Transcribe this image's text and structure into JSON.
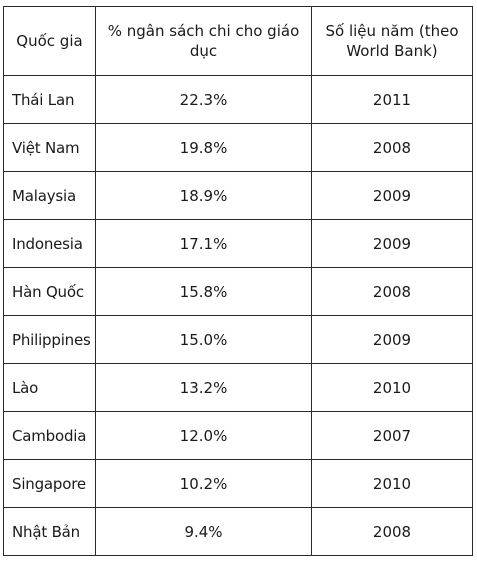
{
  "table": {
    "headers": {
      "country": "Quốc gia",
      "budget": "% ngân sách chi cho giáo dục",
      "year": "Số liệu năm (theo World Bank)"
    },
    "rows": [
      {
        "country": "Thái Lan",
        "percent": "22.3%",
        "year": "2011"
      },
      {
        "country": "Việt Nam",
        "percent": "19.8%",
        "year": "2008"
      },
      {
        "country": "Malaysia",
        "percent": "18.9%",
        "year": "2009"
      },
      {
        "country": "Indonesia",
        "percent": "17.1%",
        "year": "2009"
      },
      {
        "country": "Hàn Quốc",
        "percent": "15.8%",
        "year": "2008"
      },
      {
        "country": "Philippines",
        "percent": "15.0%",
        "year": "2009"
      },
      {
        "country": "Lào",
        "percent": "13.2%",
        "year": "2010"
      },
      {
        "country": "Cambodia",
        "percent": "12.0%",
        "year": "2007"
      },
      {
        "country": "Singapore",
        "percent": "10.2%",
        "year": "2010"
      },
      {
        "country": "Nhật Bản",
        "percent": "9.4%",
        "year": "2008"
      }
    ]
  }
}
